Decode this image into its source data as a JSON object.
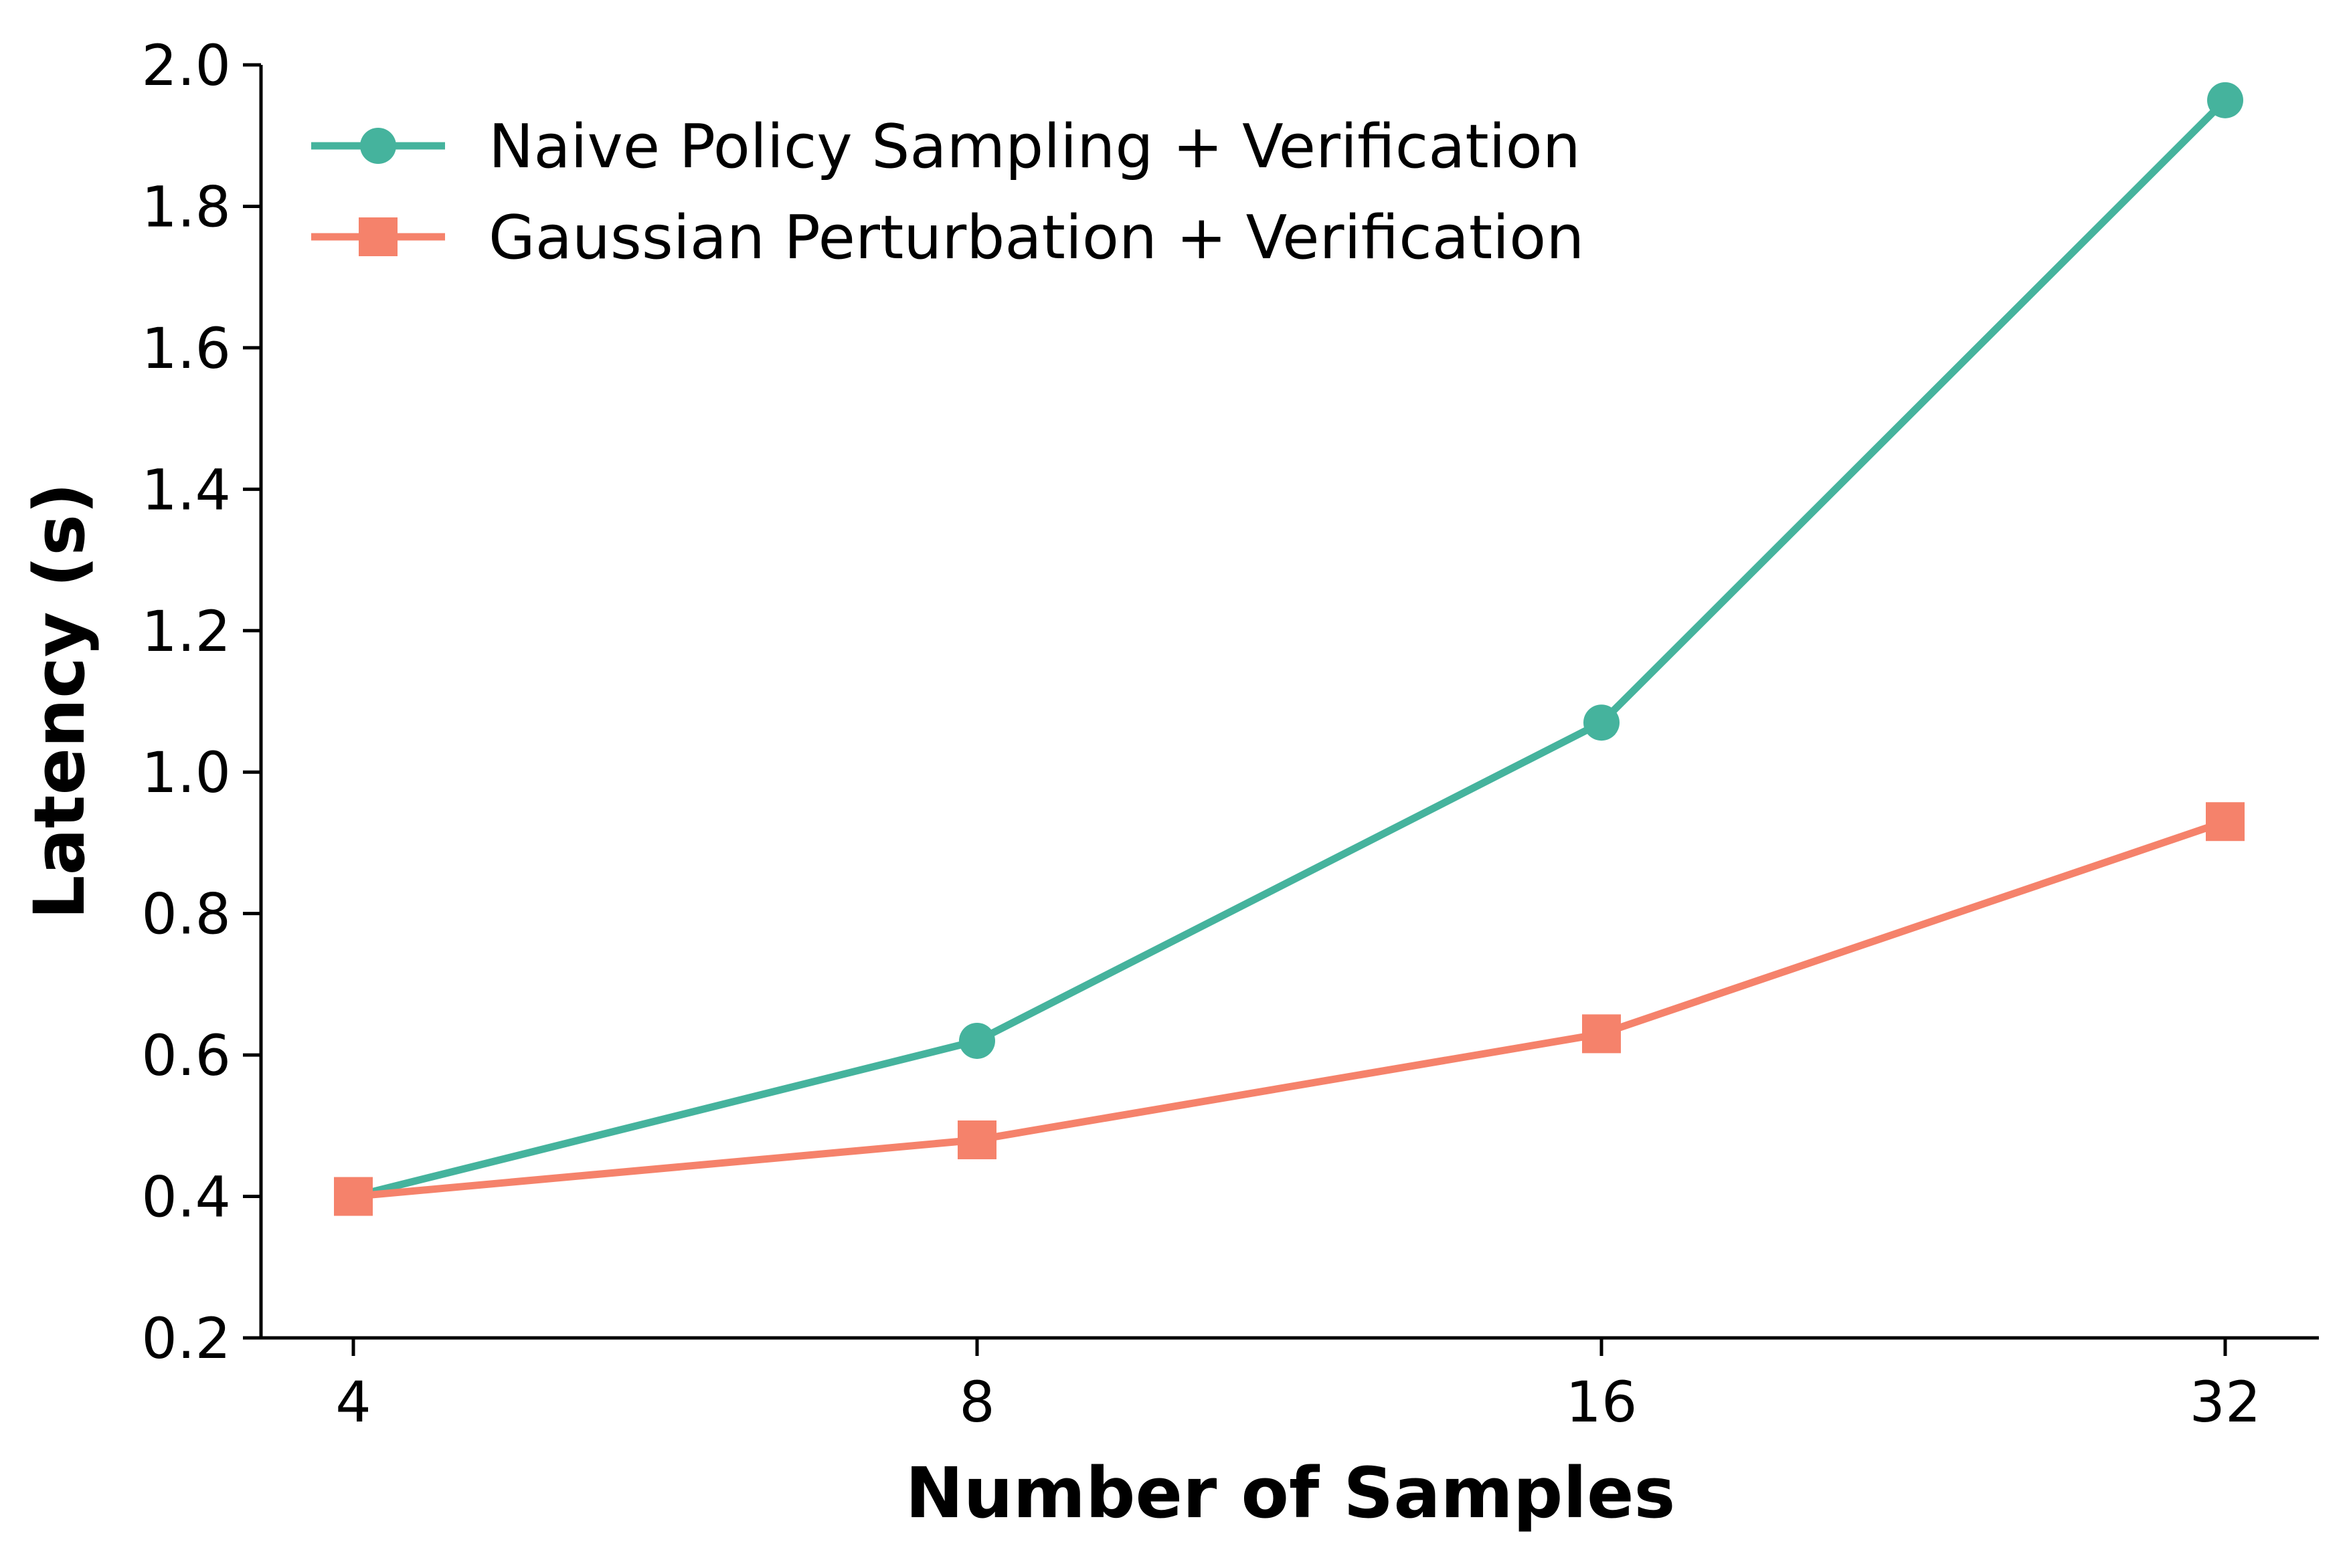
{
  "chart_data": {
    "type": "line",
    "title": "",
    "xlabel": "Number of Samples",
    "ylabel": "Latency (s)",
    "x_scale": "categorical",
    "categories": [
      "4",
      "8",
      "16",
      "32"
    ],
    "ylim": [
      0.2,
      2.0
    ],
    "y_ticks": [
      "0.2",
      "0.4",
      "0.6",
      "0.8",
      "1.0",
      "1.2",
      "1.4",
      "1.6",
      "1.8",
      "2.0"
    ],
    "grid": false,
    "legend_position": "top-left",
    "series": [
      {
        "name": "Naive Policy Sampling + Verification",
        "marker": "circle",
        "color": "#45b39d",
        "values": [
          0.4,
          0.62,
          1.07,
          1.95
        ]
      },
      {
        "name": "Gaussian Perturbation + Verification",
        "marker": "square",
        "color": "#f5826b",
        "values": [
          0.4,
          0.48,
          0.63,
          0.93
        ]
      }
    ]
  }
}
